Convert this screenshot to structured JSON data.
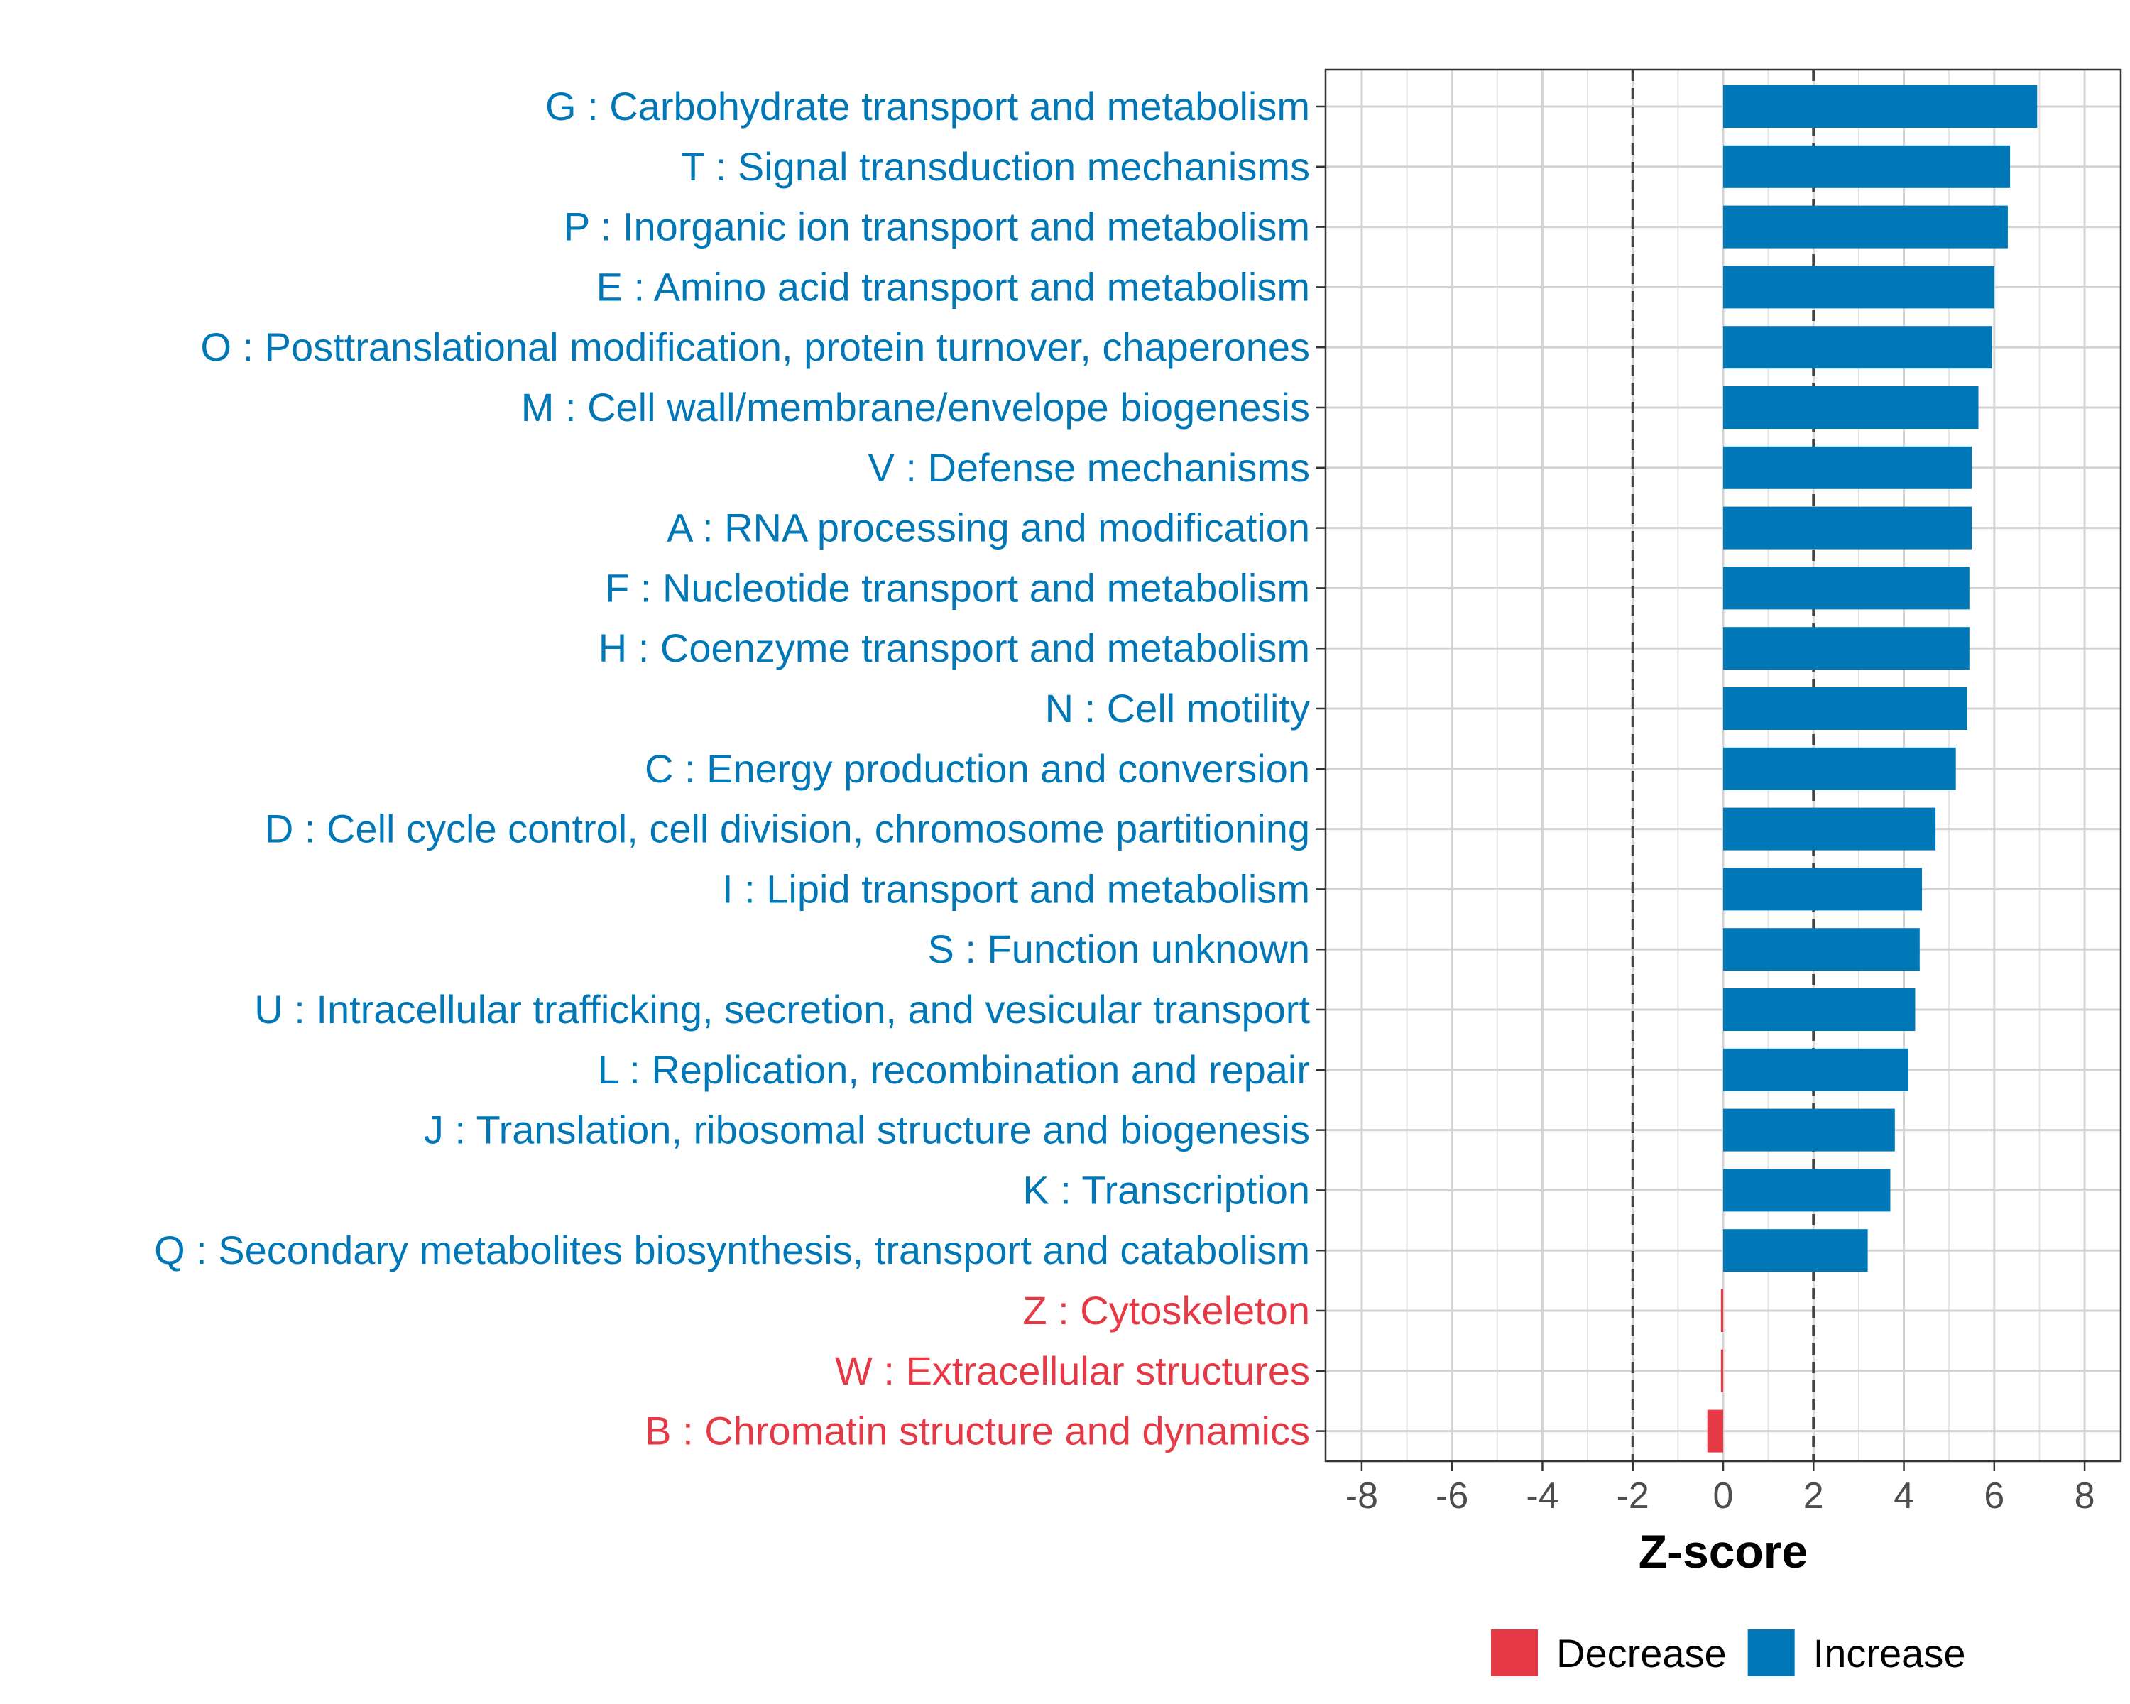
{
  "chart_data": {
    "type": "bar",
    "orientation": "horizontal",
    "categories": [
      "G : Carbohydrate transport and metabolism",
      "T : Signal transduction mechanisms",
      "P : Inorganic ion transport and metabolism",
      "E : Amino acid transport and metabolism",
      "O : Posttranslational modification, protein turnover, chaperones",
      "M : Cell wall/membrane/envelope biogenesis",
      "V : Defense mechanisms",
      "A : RNA processing and modification",
      "F : Nucleotide transport and metabolism",
      "H : Coenzyme transport and metabolism",
      "N : Cell motility",
      "C : Energy production and conversion",
      "D : Cell cycle control, cell division, chromosome partitioning",
      "I : Lipid transport and metabolism",
      "S : Function unknown",
      "U : Intracellular trafficking, secretion, and vesicular transport",
      "L : Replication, recombination and repair",
      "J : Translation, ribosomal structure and biogenesis",
      "K : Transcription",
      "Q : Secondary metabolites biosynthesis, transport and catabolism",
      "Z : Cytoskeleton",
      "W : Extracellular structures",
      "B : Chromatin structure and dynamics"
    ],
    "values": [
      6.95,
      6.35,
      6.3,
      6.0,
      5.95,
      5.65,
      5.5,
      5.5,
      5.45,
      5.45,
      5.4,
      5.15,
      4.7,
      4.4,
      4.35,
      4.25,
      4.1,
      3.8,
      3.7,
      3.2,
      -0.05,
      -0.05,
      -0.35
    ],
    "groups": [
      "Increase",
      "Increase",
      "Increase",
      "Increase",
      "Increase",
      "Increase",
      "Increase",
      "Increase",
      "Increase",
      "Increase",
      "Increase",
      "Increase",
      "Increase",
      "Increase",
      "Increase",
      "Increase",
      "Increase",
      "Increase",
      "Increase",
      "Increase",
      "Decrease",
      "Decrease",
      "Decrease"
    ],
    "xlabel": "Z-score",
    "xlim": [
      -8.8,
      8.8
    ],
    "xticks": [
      -8,
      -6,
      -4,
      -2,
      0,
      2,
      4,
      6,
      8
    ],
    "xtick_labels": [
      "-8",
      "-6",
      "-4",
      "-2",
      "0",
      "2",
      "4",
      "6",
      "8"
    ],
    "reference_lines": [
      -2,
      2
    ],
    "grid": true,
    "legend": {
      "position": "bottom",
      "entries": [
        {
          "label": "Decrease",
          "color": "#E63946"
        },
        {
          "label": "Increase",
          "color": "#0077B6"
        }
      ]
    },
    "colors": {
      "Increase": "#0077B6",
      "Decrease": "#E63946"
    }
  }
}
